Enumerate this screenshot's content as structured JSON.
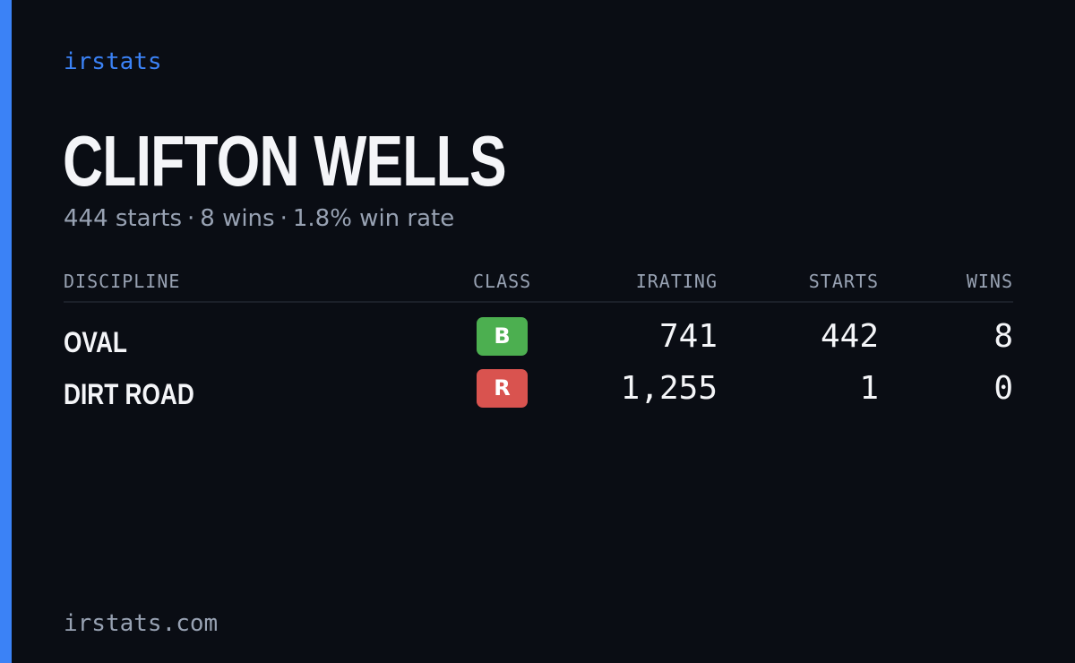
{
  "brand": "irstats",
  "driver": {
    "name": "CLIFTON WELLS",
    "starts_text": "444 starts",
    "wins_text": "8 wins",
    "winrate_text": "1.8% win rate",
    "separator": "·"
  },
  "table": {
    "headers": {
      "discipline": "DISCIPLINE",
      "class": "CLASS",
      "irating": "IRATING",
      "starts": "STARTS",
      "wins": "WINS"
    },
    "rows": [
      {
        "discipline": "OVAL",
        "class": "B",
        "class_color": "#4caf50",
        "irating": "741",
        "starts": "442",
        "wins": "8"
      },
      {
        "discipline": "DIRT ROAD",
        "class": "R",
        "class_color": "#d9534f",
        "irating": "1,255",
        "starts": "1",
        "wins": "0"
      }
    ]
  },
  "footer": "irstats.com",
  "colors": {
    "background": "#0a0d14",
    "accent": "#3b82f6",
    "text": "#f4f5f8",
    "muted": "#98a2b3"
  }
}
